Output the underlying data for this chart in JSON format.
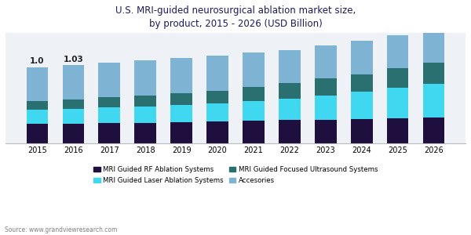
{
  "years": [
    2015,
    2016,
    2017,
    2018,
    2019,
    2020,
    2021,
    2022,
    2023,
    2024,
    2025,
    2026
  ],
  "rf_ablation": [
    0.26,
    0.26,
    0.27,
    0.27,
    0.28,
    0.29,
    0.3,
    0.31,
    0.31,
    0.32,
    0.33,
    0.34
  ],
  "laser_ablation": [
    0.18,
    0.19,
    0.2,
    0.21,
    0.22,
    0.23,
    0.26,
    0.28,
    0.32,
    0.36,
    0.4,
    0.44
  ],
  "focused_ultrasound": [
    0.12,
    0.13,
    0.14,
    0.15,
    0.16,
    0.17,
    0.18,
    0.2,
    0.22,
    0.23,
    0.26,
    0.28
  ],
  "accessories": [
    0.44,
    0.45,
    0.45,
    0.46,
    0.46,
    0.46,
    0.45,
    0.44,
    0.44,
    0.44,
    0.43,
    0.42
  ],
  "annotations": [
    {
      "idx": 0,
      "value": "1.0"
    },
    {
      "idx": 1,
      "value": "1.03"
    }
  ],
  "colors": {
    "rf_ablation": "#1e0f3f",
    "laser_ablation": "#40d8f0",
    "focused_ultrasound": "#2b7070",
    "accessories": "#7fb3d3"
  },
  "legend_labels": [
    "MRI Guided RF Ablation Systems",
    "MRI Guided Laser Ablation Systems",
    "MRI Guided Focused Ultrasound Systems",
    "Accesories"
  ],
  "title_line1": "U.S. MRI-guided neurosurgical ablation market size,",
  "title_line2": "by product, 2015 - 2026 (USD Billion)",
  "source": "Source: www.grandviewresearch.com",
  "plot_bg": "#eef2f7",
  "fig_bg": "#ffffff",
  "ylim": [
    0,
    1.45
  ],
  "bar_width": 0.6,
  "title_color": "#1a1a5e",
  "annotation_fontsize": 7.5,
  "tick_fontsize": 7,
  "legend_fontsize": 6.2,
  "title_fontsize": 8.5
}
